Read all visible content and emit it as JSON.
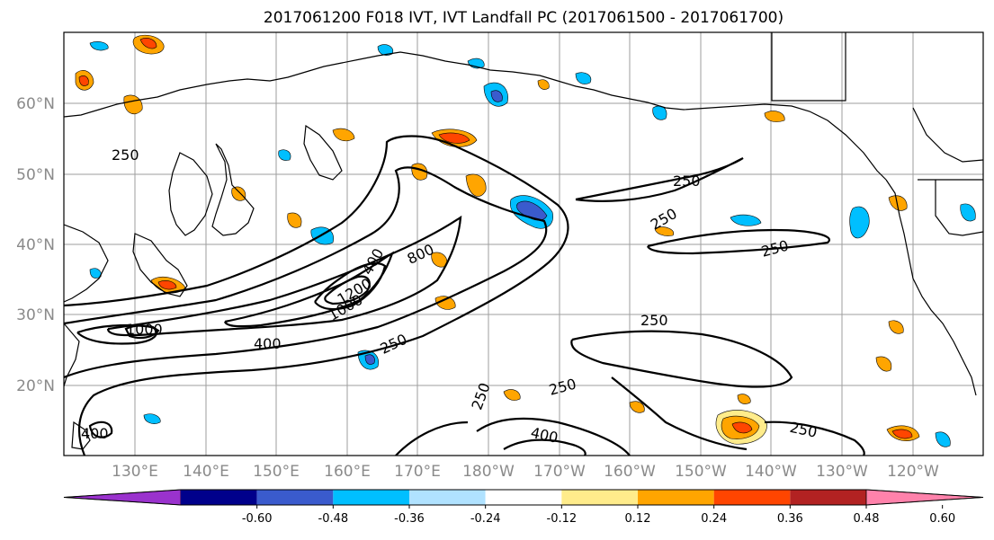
{
  "title": "2017061200 F018 IVT, IVT Landfall PC (2017061500 - 2017061700)",
  "lat_labels": [
    "60°N",
    "50°N",
    "40°N",
    "30°N",
    "20°N"
  ],
  "lon_labels": [
    "130°E",
    "140°E",
    "150°E",
    "160°E",
    "170°E",
    "180°W",
    "170°W",
    "160°W",
    "150°W",
    "140°W",
    "130°W",
    "120°W"
  ],
  "contour_labels": [
    "250",
    "250",
    "250",
    "250",
    "250",
    "250",
    "250",
    "250",
    "250",
    "800",
    "400",
    "1000",
    "400",
    "1000",
    "1200",
    "400",
    "400"
  ],
  "colorbar": {
    "colors": [
      "#9a32cd",
      "#00008b",
      "#3a5bcd",
      "#00bfff",
      "#b0e2ff",
      "#ffffff",
      "#ffec8b",
      "#ffa500",
      "#ff4500",
      "#b22222",
      "#ff82ab"
    ],
    "tick_labels": [
      "-0.60",
      "-0.48",
      "-0.36",
      "-0.24",
      "-0.12",
      "0.12",
      "0.24",
      "0.36",
      "0.48",
      "0.60"
    ]
  }
}
